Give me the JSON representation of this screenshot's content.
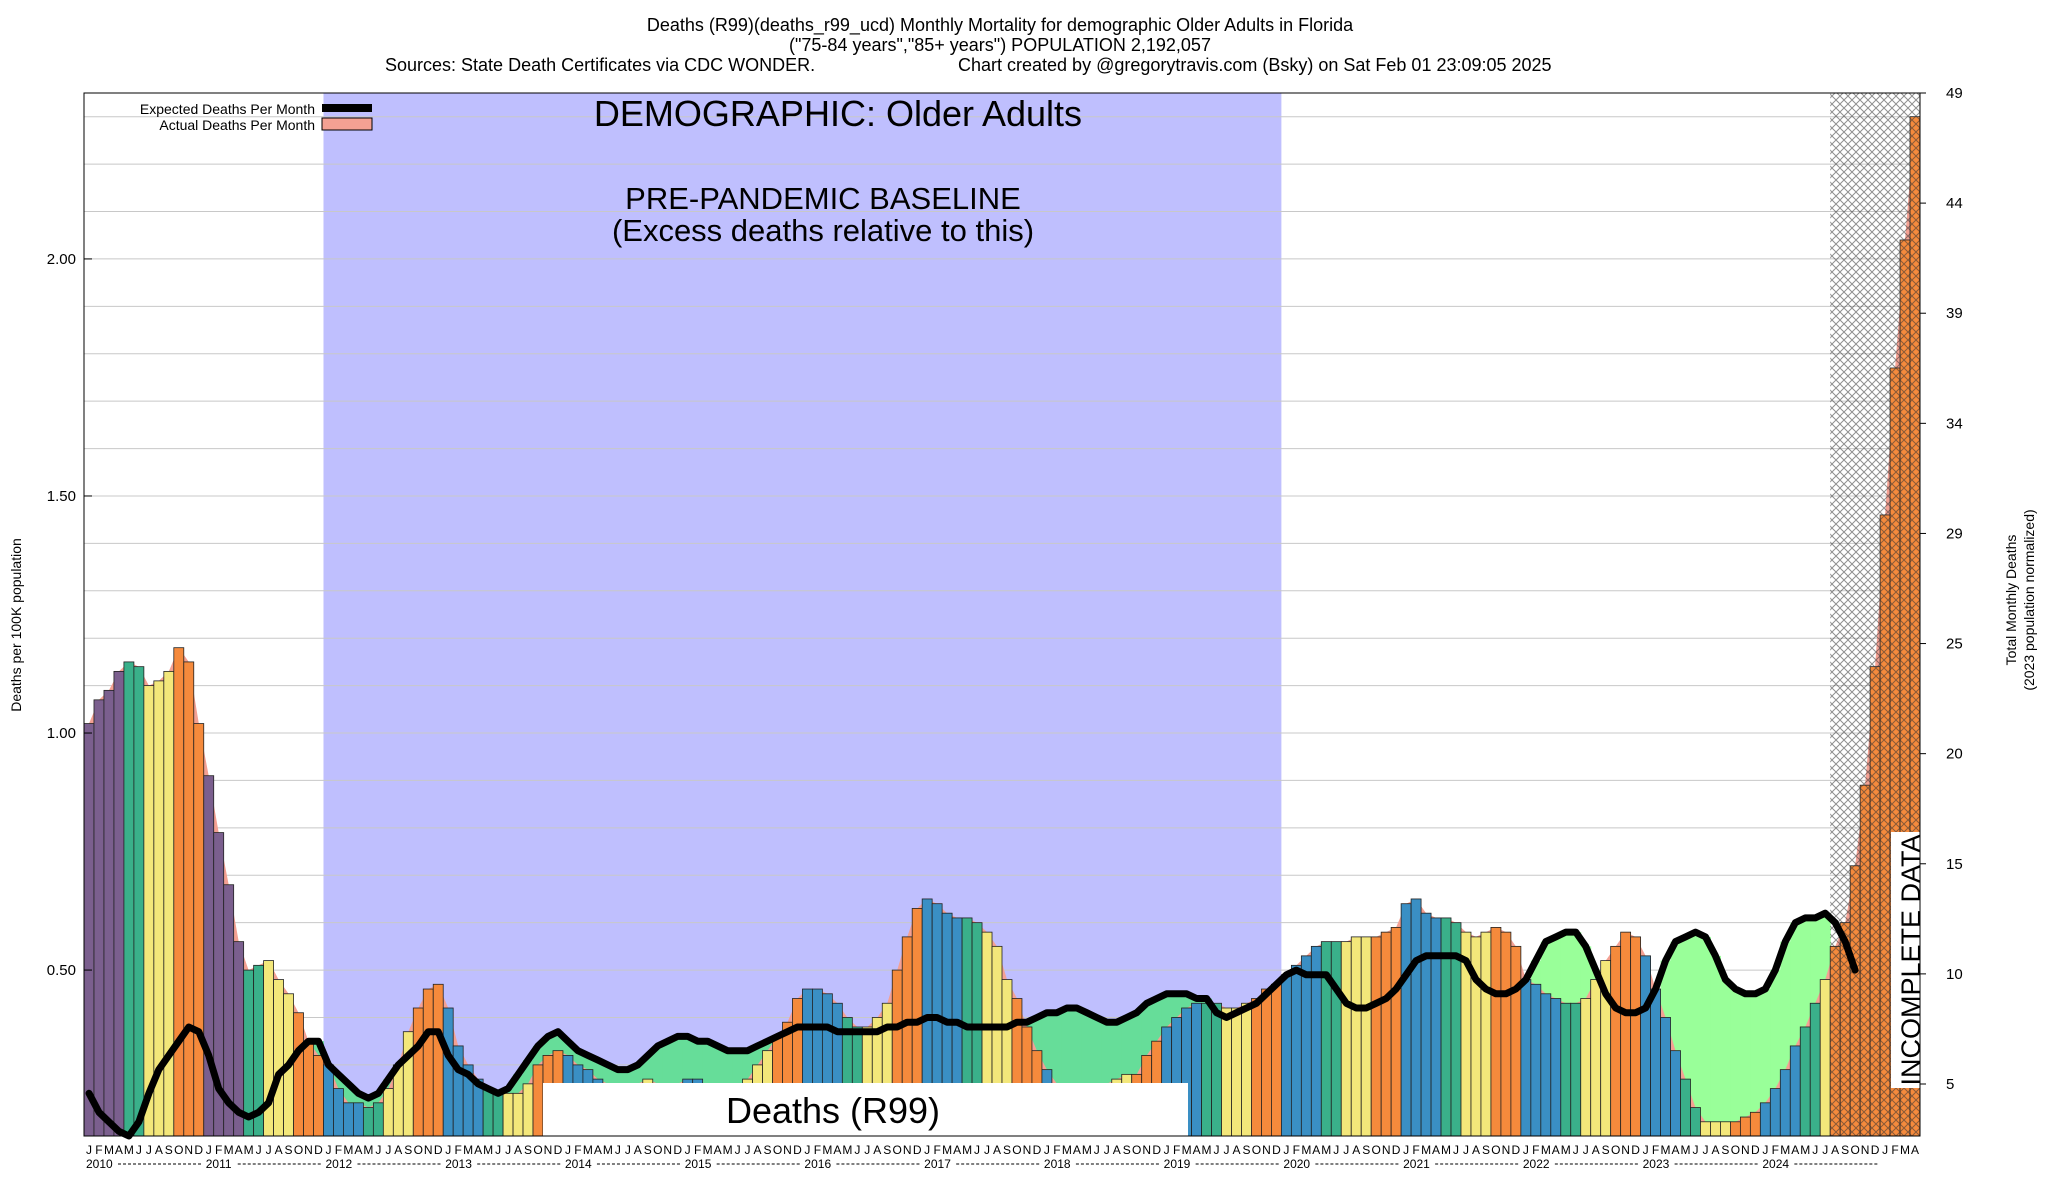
{
  "header": {
    "line1": "Deaths (R99)(deaths_r99_ucd) Monthly Mortality for demographic Older Adults in Florida",
    "line2": "(\"75-84 years\",\"85+ years\") POPULATION 2,192,057",
    "line3a": "Sources: State Death Certificates via CDC WONDER.",
    "line3b": "Chart created by @gregorytravis.com (Bsky) on Sat Feb 01 23:09:05 2025"
  },
  "annotations": {
    "demographic": "DEMOGRAPHIC: Older Adults",
    "baseline_line1": "PRE-PANDEMIC BASELINE",
    "baseline_line2": "(Excess deaths relative to this)",
    "cause_label": "Deaths (R99)",
    "incomplete": "INCOMPLETE DATA"
  },
  "legend": {
    "expected": "Expected Deaths Per Month",
    "actual": "Actual Deaths Per Month"
  },
  "colors": {
    "baseline_band": "#bfbffe",
    "expected_line": "#000000",
    "actual_area": "#f4a193",
    "excess_fill_green": "#66dd99",
    "excess_fill_lightgreen": "#99ff99",
    "bar_blue": "#3a8fc4",
    "bar_orange": "#f58a3c",
    "bar_yellow": "#f3e77a",
    "bar_teal": "#3ab08a",
    "bar_purple": "#7b5f8e"
  },
  "chart_data": {
    "type": "bar",
    "xlabel": "",
    "ylabel": "Deaths per 100K population",
    "y2label_line1": "Total Monthly Deaths",
    "y2label_line2": "(2023 population normalized)",
    "ylim": [
      0.15,
      2.35
    ],
    "y_ticks": [
      "0.50",
      "1.00",
      "1.50",
      "2.00"
    ],
    "y2_ticks": [
      "5",
      "10",
      "15",
      "20",
      "25",
      "29",
      "34",
      "39",
      "44",
      "49"
    ],
    "month_letters": [
      "J",
      "F",
      "M",
      "A",
      "M",
      "J",
      "J",
      "A",
      "S",
      "O",
      "N",
      "D"
    ],
    "years": [
      "2010",
      "2011",
      "2012",
      "2013",
      "2014",
      "2015",
      "2016",
      "2017",
      "2018",
      "2019",
      "2020",
      "2021",
      "2022",
      "2023",
      "2024"
    ],
    "baseline_period": [
      "2012-01",
      "2019-12"
    ],
    "incomplete_from": "2024-08",
    "series": [
      {
        "name": "Actual Deaths Per Month",
        "start": "2010-01",
        "values": [
          1.02,
          1.07,
          1.09,
          1.13,
          1.15,
          1.14,
          1.1,
          1.11,
          1.13,
          1.18,
          1.15,
          1.02,
          0.91,
          0.79,
          0.68,
          0.56,
          0.5,
          0.51,
          0.52,
          0.48,
          0.45,
          0.41,
          0.35,
          0.32,
          0.3,
          0.25,
          0.22,
          0.22,
          0.21,
          0.22,
          0.25,
          0.3,
          0.37,
          0.42,
          0.46,
          0.47,
          0.42,
          0.34,
          0.3,
          0.27,
          0.25,
          0.24,
          0.24,
          0.24,
          0.26,
          0.3,
          0.32,
          0.33,
          0.32,
          0.3,
          0.29,
          0.27,
          0.26,
          0.25,
          0.25,
          0.26,
          0.27,
          0.26,
          0.25,
          0.26,
          0.27,
          0.27,
          0.25,
          0.24,
          0.24,
          0.25,
          0.27,
          0.3,
          0.33,
          0.36,
          0.39,
          0.44,
          0.46,
          0.46,
          0.45,
          0.43,
          0.4,
          0.38,
          0.38,
          0.4,
          0.43,
          0.5,
          0.57,
          0.63,
          0.65,
          0.64,
          0.62,
          0.61,
          0.61,
          0.6,
          0.58,
          0.55,
          0.48,
          0.44,
          0.38,
          0.33,
          0.29,
          0.26,
          0.24,
          0.23,
          0.23,
          0.24,
          0.26,
          0.27,
          0.28,
          0.28,
          0.32,
          0.35,
          0.38,
          0.4,
          0.42,
          0.43,
          0.43,
          0.43,
          0.42,
          0.42,
          0.43,
          0.44,
          0.46,
          0.47,
          0.49,
          0.51,
          0.53,
          0.55,
          0.56,
          0.56,
          0.56,
          0.57,
          0.57,
          0.57,
          0.58,
          0.59,
          0.64,
          0.65,
          0.62,
          0.61,
          0.61,
          0.6,
          0.58,
          0.57,
          0.58,
          0.59,
          0.58,
          0.55,
          0.48,
          0.47,
          0.45,
          0.44,
          0.43,
          0.43,
          0.44,
          0.48,
          0.52,
          0.55,
          0.58,
          0.57,
          0.53,
          0.46,
          0.4,
          0.33,
          0.27,
          0.21,
          0.18,
          0.18,
          0.18,
          0.18,
          0.19,
          0.2,
          0.22,
          0.25,
          0.29,
          0.34,
          0.38,
          0.43,
          0.48,
          0.55,
          0.6,
          0.72,
          0.89,
          1.14,
          1.46,
          1.77,
          2.04,
          2.3
        ]
      },
      {
        "name": "Expected Deaths Per Month",
        "start": "2010-01",
        "values": [
          0.24,
          0.2,
          0.18,
          0.16,
          0.15,
          0.18,
          0.24,
          0.29,
          0.32,
          0.35,
          0.38,
          0.37,
          0.32,
          0.25,
          0.22,
          0.2,
          0.19,
          0.2,
          0.22,
          0.28,
          0.3,
          0.33,
          0.35,
          0.35,
          0.3,
          0.28,
          0.26,
          0.24,
          0.23,
          0.24,
          0.27,
          0.3,
          0.32,
          0.34,
          0.37,
          0.37,
          0.32,
          0.29,
          0.28,
          0.26,
          0.25,
          0.24,
          0.25,
          0.28,
          0.31,
          0.34,
          0.36,
          0.37,
          0.35,
          0.33,
          0.32,
          0.31,
          0.3,
          0.29,
          0.29,
          0.3,
          0.32,
          0.34,
          0.35,
          0.36,
          0.36,
          0.35,
          0.35,
          0.34,
          0.33,
          0.33,
          0.33,
          0.34,
          0.35,
          0.36,
          0.37,
          0.38,
          0.38,
          0.38,
          0.38,
          0.37,
          0.37,
          0.37,
          0.37,
          0.37,
          0.38,
          0.38,
          0.39,
          0.39,
          0.4,
          0.4,
          0.39,
          0.39,
          0.38,
          0.38,
          0.38,
          0.38,
          0.38,
          0.39,
          0.39,
          0.4,
          0.41,
          0.41,
          0.42,
          0.42,
          0.41,
          0.4,
          0.39,
          0.39,
          0.4,
          0.41,
          0.43,
          0.44,
          0.45,
          0.45,
          0.45,
          0.44,
          0.44,
          0.41,
          0.4,
          0.41,
          0.42,
          0.43,
          0.45,
          0.47,
          0.49,
          0.5,
          0.49,
          0.49,
          0.49,
          0.46,
          0.43,
          0.42,
          0.42,
          0.43,
          0.44,
          0.46,
          0.49,
          0.52,
          0.53,
          0.53,
          0.53,
          0.53,
          0.52,
          0.48,
          0.46,
          0.45,
          0.45,
          0.46,
          0.48,
          0.52,
          0.56,
          0.57,
          0.58,
          0.58,
          0.55,
          0.5,
          0.45,
          0.42,
          0.41,
          0.41,
          0.42,
          0.46,
          0.52,
          0.56,
          0.57,
          0.58,
          0.57,
          0.53,
          0.48,
          0.46,
          0.45,
          0.45,
          0.46,
          0.5,
          0.56,
          0.6,
          0.61,
          0.61,
          0.62,
          0.6,
          0.56,
          0.5
        ]
      }
    ]
  }
}
